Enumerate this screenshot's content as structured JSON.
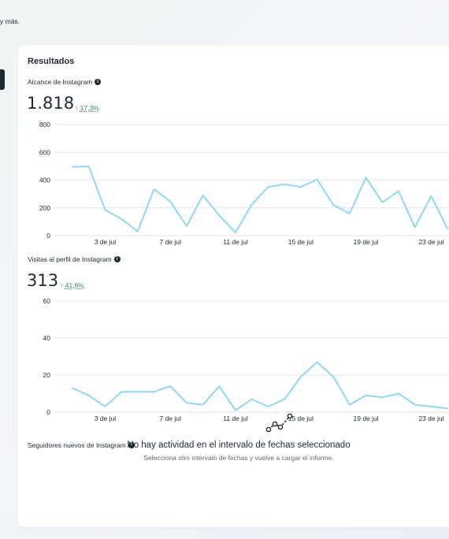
{
  "page": {
    "top_text": "y más."
  },
  "results": {
    "title": "Resultados",
    "line_color": "#8dd8f2",
    "grid_color": "#e4e6eb",
    "delta_color": "#2e8d51"
  },
  "reach": {
    "label": "Alcance de Instagram",
    "value": "1.818",
    "delta_arrow": "↑",
    "delta_pct": "17,3%"
  },
  "profile_visits": {
    "label": "Visitas al perfil de Instagram",
    "value": "313",
    "delta_arrow": "↑",
    "delta_pct": "41,6%"
  },
  "new_followers": {
    "label": "Seguidores nuevos de Instagram",
    "empty_icon": "chart-line-icon",
    "empty_title": "No hay actividad en el intervalo de fechas seleccionado",
    "empty_subtitle": "Selecciona otro intervalo de fechas y vuelve a cargar el informe."
  },
  "chart_data": [
    {
      "type": "line",
      "x_ticks": [
        "3 de jul",
        "7 de jul",
        "11 de jul",
        "15 de jul",
        "19 de jul",
        "23 de jul"
      ],
      "y_ticks": [
        "0",
        "200",
        "400",
        "600",
        "800"
      ],
      "ylim": [
        0,
        800
      ],
      "grid": true,
      "x": [
        1,
        2,
        3,
        4,
        5,
        6,
        7,
        8,
        9,
        10,
        11,
        12,
        13,
        14,
        15,
        16,
        17,
        18,
        19,
        20,
        21,
        22,
        23,
        24
      ],
      "values": [
        495,
        498,
        185,
        120,
        30,
        335,
        245,
        68,
        290,
        145,
        22,
        225,
        350,
        370,
        350,
        405,
        220,
        160,
        418,
        240,
        320,
        60,
        285,
        50
      ]
    },
    {
      "type": "line",
      "x_ticks": [
        "3 de jul",
        "7 de jul",
        "11 de jul",
        "15 de jul",
        "19 de jul",
        "23 de jul"
      ],
      "y_ticks": [
        "0",
        "20",
        "40",
        "60"
      ],
      "ylim": [
        0,
        60
      ],
      "grid": true,
      "x": [
        1,
        2,
        3,
        4,
        5,
        6,
        7,
        8,
        9,
        10,
        11,
        12,
        13,
        14,
        15,
        16,
        17,
        18,
        19,
        20,
        21,
        22,
        23,
        24
      ],
      "values": [
        13,
        9,
        3,
        11,
        11,
        11,
        14,
        5,
        4,
        14,
        1,
        7,
        3,
        7,
        19,
        27,
        19,
        4,
        9,
        8,
        10,
        4,
        3,
        2
      ]
    }
  ]
}
